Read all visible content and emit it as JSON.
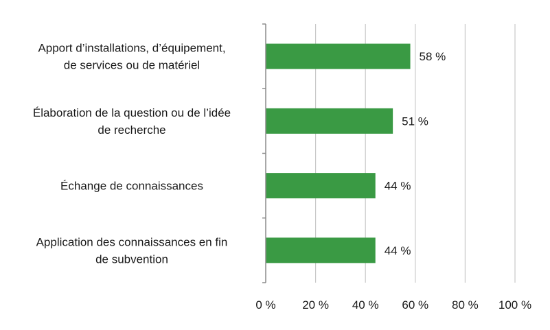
{
  "chart_data": {
    "type": "bar",
    "orientation": "horizontal",
    "categories": [
      [
        "Apport d’installations, d’équipement,",
        "de services ou de matériel"
      ],
      [
        "Élaboration de la question ou de l’idée",
        "de recherche"
      ],
      [
        "Échange de connaissances"
      ],
      [
        "Application des connaissances en fin",
        "de subvention"
      ]
    ],
    "values": [
      58,
      51,
      44,
      44
    ],
    "value_labels": [
      "58 %",
      "51 %",
      "44 %",
      "44 %"
    ],
    "xlim": [
      0,
      100
    ],
    "xticks": [
      0,
      20,
      40,
      60,
      80,
      100
    ],
    "xtick_labels": [
      "0 %",
      "20 %",
      "40 %",
      "60 %",
      "80 %",
      "100 %"
    ],
    "bar_color": "#3a9a44",
    "grid": true,
    "gridline_color": "#c8c8c8",
    "axis_color": "#8c8c8c",
    "title": "",
    "xlabel": "",
    "ylabel": ""
  }
}
